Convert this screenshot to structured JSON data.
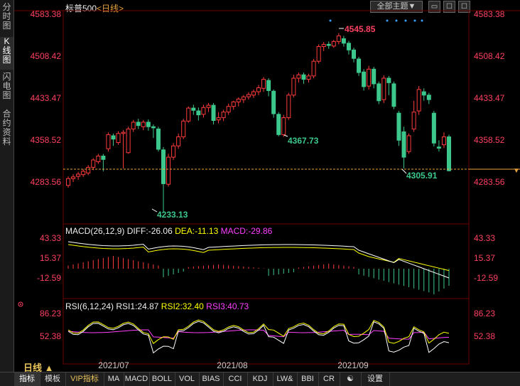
{
  "sidebar": {
    "tabs": [
      {
        "label": "分时图",
        "active": false
      },
      {
        "label": "K线图",
        "active": true
      },
      {
        "label": "闪电图",
        "active": false
      },
      {
        "label": "合约资料",
        "active": false
      }
    ]
  },
  "header": {
    "symbol": "标普500",
    "period": "<日线>",
    "theme_button": "全部主题▼",
    "buttons": [
      "▭",
      "☐",
      "☐"
    ]
  },
  "price_panel": {
    "y_ticks": [
      "4583.38",
      "4508.42",
      "4433.47",
      "4358.52",
      "4283.56"
    ],
    "annotations": [
      {
        "label": "4545.85",
        "color": "#ff4060"
      },
      {
        "label": "4367.73",
        "color": "#3cc88c"
      },
      {
        "label": "4233.13",
        "color": "#3cc88c"
      },
      {
        "label": "4305.91",
        "color": "#3cc88c"
      }
    ],
    "last_marker": "▼"
  },
  "macd_panel": {
    "title": "MACD(26,12,9)",
    "diff": "DIFF:-26.06",
    "dea": "DEA:-11.13",
    "macd": "MACD:-29.86",
    "y_ticks": [
      "43.33",
      "15.37",
      "-12.59"
    ],
    "colors": {
      "diff": "#ffffff",
      "dea": "#ffff00",
      "macd": "#ff40ff"
    }
  },
  "rsi_panel": {
    "title": "RSI(6,12,24)",
    "rsi1": "RSI1:24.87",
    "rsi2": "RSI2:32.40",
    "rsi3": "RSI3:40.73",
    "y_ticks": [
      "86.23",
      "52.38"
    ],
    "colors": {
      "rsi1": "#ffffff",
      "rsi2": "#ffff00",
      "rsi3": "#ff40ff"
    }
  },
  "x_axis": {
    "labels": [
      "2021/07",
      "2021/08",
      "2021/09"
    ]
  },
  "period_selector": "日线 ▲",
  "toolbar": {
    "items": [
      "指标",
      "模板",
      "VIP指标",
      "MA",
      "MACD",
      "BOLL",
      "VOL",
      "BIAS",
      "CCI",
      "KDJ",
      "LW&",
      "BBI",
      "CR",
      "☯",
      "设置"
    ],
    "active": "指标",
    "vip": "VIP指标"
  },
  "chart_data": {
    "type": "candlestick",
    "y_range": [
      4233.13,
      4583.38
    ],
    "candles": [
      [
        4280,
        4292,
        4276,
        4296
      ],
      [
        4292,
        4295,
        4286,
        4300
      ],
      [
        4296,
        4300,
        4290,
        4304
      ],
      [
        4299,
        4305,
        4295,
        4309
      ],
      [
        4302,
        4312,
        4298,
        4316
      ],
      [
        4312,
        4325,
        4307,
        4328
      ],
      [
        4322,
        4332,
        4318,
        4336
      ],
      [
        4332,
        4326,
        4305,
        4336
      ],
      [
        4345,
        4370,
        4340,
        4374
      ],
      [
        4368,
        4362,
        4350,
        4372
      ],
      [
        4356,
        4372,
        4352,
        4376
      ],
      [
        4372,
        4374,
        4310,
        4378
      ],
      [
        4338,
        4380,
        4336,
        4384
      ],
      [
        4380,
        4392,
        4375,
        4396
      ],
      [
        4392,
        4386,
        4380,
        4398
      ],
      [
        4384,
        4392,
        4378,
        4396
      ],
      [
        4392,
        4384,
        4377,
        4397
      ],
      [
        4384,
        4382,
        4364,
        4388
      ],
      [
        4380,
        4344,
        4340,
        4384
      ],
      [
        4343,
        4283,
        4233,
        4348
      ],
      [
        4282,
        4330,
        4278,
        4336
      ],
      [
        4330,
        4350,
        4325,
        4355
      ],
      [
        4350,
        4366,
        4345,
        4372
      ],
      [
        4366,
        4394,
        4362,
        4398
      ],
      [
        4394,
        4417,
        4391,
        4420
      ],
      [
        4417,
        4413,
        4405,
        4423
      ],
      [
        4412,
        4405,
        4395,
        4418
      ],
      [
        4406,
        4418,
        4400,
        4423
      ],
      [
        4418,
        4422,
        4410,
        4426
      ],
      [
        4422,
        4395,
        4388,
        4426
      ],
      [
        4396,
        4400,
        4390,
        4410
      ],
      [
        4400,
        4410,
        4394,
        4414
      ],
      [
        4410,
        4420,
        4405,
        4425
      ],
      [
        4420,
        4428,
        4414,
        4430
      ],
      [
        4428,
        4433,
        4420,
        4436
      ],
      [
        4432,
        4437,
        4426,
        4440
      ],
      [
        4437,
        4441,
        4432,
        4445
      ],
      [
        4440,
        4446,
        4435,
        4450
      ],
      [
        4446,
        4453,
        4440,
        4458
      ],
      [
        4452,
        4468,
        4446,
        4472
      ],
      [
        4466,
        4448,
        4438,
        4470
      ],
      [
        4447,
        4407,
        4400,
        4450
      ],
      [
        4406,
        4370,
        4367,
        4410
      ],
      [
        4370,
        4400,
        4366,
        4405
      ],
      [
        4400,
        4440,
        4396,
        4444
      ],
      [
        4440,
        4470,
        4436,
        4476
      ],
      [
        4470,
        4476,
        4462,
        4480
      ],
      [
        4476,
        4468,
        4460,
        4480
      ],
      [
        4468,
        4474,
        4462,
        4478
      ],
      [
        4474,
        4500,
        4470,
        4504
      ],
      [
        4500,
        4526,
        4496,
        4530
      ],
      [
        4526,
        4530,
        4518,
        4534
      ],
      [
        4530,
        4528,
        4522,
        4535
      ],
      [
        4527,
        4535,
        4524,
        4538
      ],
      [
        4535,
        4545,
        4530,
        4550
      ],
      [
        4540,
        4532,
        4526,
        4545
      ],
      [
        4532,
        4520,
        4512,
        4536
      ],
      [
        4520,
        4505,
        4498,
        4524
      ],
      [
        4504,
        4480,
        4474,
        4508
      ],
      [
        4481,
        4455,
        4448,
        4486
      ],
      [
        4456,
        4486,
        4450,
        4492
      ],
      [
        4486,
        4460,
        4452,
        4490
      ],
      [
        4460,
        4430,
        4424,
        4464
      ],
      [
        4432,
        4470,
        4426,
        4475
      ],
      [
        4470,
        4462,
        4440,
        4474
      ],
      [
        4460,
        4420,
        4415,
        4464
      ],
      [
        4408,
        4360,
        4350,
        4412
      ],
      [
        4375,
        4330,
        4310,
        4384
      ],
      [
        4340,
        4368,
        4336,
        4372
      ],
      [
        4380,
        4410,
        4375,
        4430
      ],
      [
        4412,
        4450,
        4405,
        4456
      ],
      [
        4446,
        4440,
        4430,
        4452
      ],
      [
        4440,
        4432,
        4424,
        4444
      ],
      [
        4408,
        4355,
        4349,
        4412
      ],
      [
        4348,
        4346,
        4340,
        4360
      ],
      [
        4352,
        4366,
        4346,
        4374
      ],
      [
        4366,
        4306,
        4305,
        4370
      ]
    ]
  }
}
